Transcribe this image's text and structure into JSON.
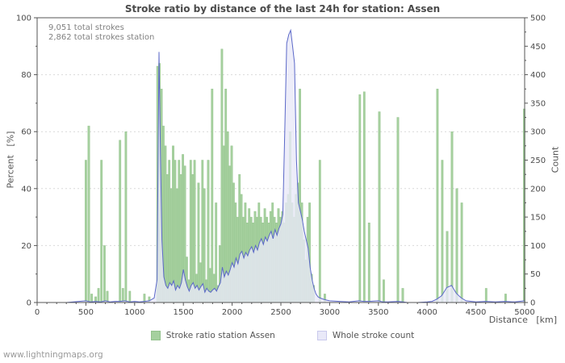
{
  "title": "Stroke ratio by distance of the last 24h for station: Assen",
  "annotations": [
    "9,051 total strokes",
    "2,862 total strokes station"
  ],
  "watermark": "www.lightningmaps.org",
  "axes": {
    "x": {
      "label": "Distance   [km]",
      "min": 0,
      "max": 5000,
      "tick": 500,
      "minor": 100
    },
    "y_left": {
      "label": "Percent   [%]",
      "min": 0,
      "max": 100,
      "tick": 20,
      "minor": 10
    },
    "y_right": {
      "label": "Count",
      "min": 0,
      "max": 500,
      "tick": 50,
      "minor": 25
    }
  },
  "legend": [
    {
      "label": "Stroke ratio station Assen",
      "type": "bar"
    },
    {
      "label": "Whole stroke count",
      "type": "area"
    }
  ],
  "colors": {
    "bar": "#a5d09e",
    "bar_border": "#93c28c",
    "area_fill": "#e9e9f8",
    "area_border": "#c9c9ec",
    "line": "#5b68c8",
    "grid": "#d9d9d9",
    "frame": "#555555",
    "tick": "#555555",
    "text": "#4a4a4a"
  },
  "chart_data": {
    "type": "bar",
    "title": "Stroke ratio by distance of the last 24h for station: Assen",
    "xlabel": "Distance [km]",
    "ylabel_left": "Percent [%]",
    "ylabel_right": "Count",
    "xlim": [
      0,
      5000
    ],
    "ylim_left": [
      0,
      100
    ],
    "ylim_right": [
      0,
      500
    ],
    "grid": true,
    "legend_position": "bottom",
    "series": [
      {
        "name": "Stroke ratio station Assen",
        "type": "bar",
        "axis": "left",
        "units": "percent",
        "points": [
          [
            500,
            50
          ],
          [
            530,
            62
          ],
          [
            560,
            3
          ],
          [
            600,
            2
          ],
          [
            630,
            5
          ],
          [
            660,
            50
          ],
          [
            690,
            20
          ],
          [
            720,
            4
          ],
          [
            850,
            57
          ],
          [
            880,
            5
          ],
          [
            910,
            60
          ],
          [
            950,
            4
          ],
          [
            1100,
            3
          ],
          [
            1150,
            2
          ],
          [
            1235,
            83
          ],
          [
            1255,
            84
          ],
          [
            1275,
            75
          ],
          [
            1295,
            62
          ],
          [
            1315,
            55
          ],
          [
            1335,
            45
          ],
          [
            1355,
            50
          ],
          [
            1375,
            40
          ],
          [
            1395,
            55
          ],
          [
            1415,
            50
          ],
          [
            1435,
            40
          ],
          [
            1455,
            50
          ],
          [
            1475,
            45
          ],
          [
            1495,
            52
          ],
          [
            1515,
            48
          ],
          [
            1535,
            16
          ],
          [
            1555,
            8
          ],
          [
            1575,
            50
          ],
          [
            1595,
            45
          ],
          [
            1615,
            50
          ],
          [
            1635,
            10
          ],
          [
            1655,
            42
          ],
          [
            1675,
            14
          ],
          [
            1695,
            50
          ],
          [
            1715,
            40
          ],
          [
            1735,
            8
          ],
          [
            1755,
            50
          ],
          [
            1775,
            12
          ],
          [
            1795,
            75
          ],
          [
            1815,
            10
          ],
          [
            1835,
            35
          ],
          [
            1855,
            6
          ],
          [
            1875,
            20
          ],
          [
            1895,
            89
          ],
          [
            1915,
            55
          ],
          [
            1935,
            75
          ],
          [
            1955,
            60
          ],
          [
            1975,
            48
          ],
          [
            1995,
            55
          ],
          [
            2015,
            42
          ],
          [
            2035,
            35
          ],
          [
            2055,
            30
          ],
          [
            2075,
            45
          ],
          [
            2095,
            38
          ],
          [
            2115,
            30
          ],
          [
            2135,
            35
          ],
          [
            2155,
            28
          ],
          [
            2175,
            33
          ],
          [
            2195,
            30
          ],
          [
            2215,
            28
          ],
          [
            2235,
            32
          ],
          [
            2255,
            30
          ],
          [
            2275,
            35
          ],
          [
            2295,
            30
          ],
          [
            2315,
            28
          ],
          [
            2335,
            33
          ],
          [
            2355,
            30
          ],
          [
            2375,
            28
          ],
          [
            2395,
            32
          ],
          [
            2415,
            35
          ],
          [
            2435,
            30
          ],
          [
            2455,
            28
          ],
          [
            2475,
            33
          ],
          [
            2495,
            30
          ],
          [
            2515,
            32
          ],
          [
            2535,
            28
          ],
          [
            2555,
            35
          ],
          [
            2575,
            38
          ],
          [
            2595,
            60
          ],
          [
            2615,
            35
          ],
          [
            2635,
            30
          ],
          [
            2655,
            38
          ],
          [
            2675,
            42
          ],
          [
            2695,
            75
          ],
          [
            2715,
            35
          ],
          [
            2735,
            22
          ],
          [
            2755,
            15
          ],
          [
            2775,
            30
          ],
          [
            2795,
            35
          ],
          [
            2815,
            10
          ],
          [
            2835,
            6
          ],
          [
            2900,
            50
          ],
          [
            2950,
            3
          ],
          [
            3310,
            73
          ],
          [
            3355,
            74
          ],
          [
            3405,
            28
          ],
          [
            3510,
            67
          ],
          [
            3555,
            8
          ],
          [
            3700,
            65
          ],
          [
            3750,
            5
          ],
          [
            4105,
            75
          ],
          [
            4155,
            50
          ],
          [
            4205,
            25
          ],
          [
            4255,
            60
          ],
          [
            4305,
            40
          ],
          [
            4355,
            35
          ],
          [
            4605,
            5
          ],
          [
            4805,
            3
          ],
          [
            4995,
            68
          ]
        ]
      },
      {
        "name": "Whole stroke count",
        "type": "area",
        "axis": "right",
        "units": "count",
        "points": [
          [
            0,
            0
          ],
          [
            300,
            0
          ],
          [
            500,
            3
          ],
          [
            550,
            1
          ],
          [
            600,
            2
          ],
          [
            650,
            1
          ],
          [
            700,
            3
          ],
          [
            750,
            1
          ],
          [
            800,
            2
          ],
          [
            850,
            2
          ],
          [
            900,
            3
          ],
          [
            950,
            1
          ],
          [
            1000,
            2
          ],
          [
            1050,
            1
          ],
          [
            1100,
            2
          ],
          [
            1150,
            3
          ],
          [
            1200,
            8
          ],
          [
            1230,
            40
          ],
          [
            1250,
            440
          ],
          [
            1265,
            260
          ],
          [
            1280,
            110
          ],
          [
            1300,
            45
          ],
          [
            1320,
            30
          ],
          [
            1340,
            25
          ],
          [
            1360,
            35
          ],
          [
            1380,
            30
          ],
          [
            1400,
            38
          ],
          [
            1420,
            22
          ],
          [
            1440,
            30
          ],
          [
            1460,
            25
          ],
          [
            1480,
            35
          ],
          [
            1500,
            58
          ],
          [
            1520,
            40
          ],
          [
            1540,
            28
          ],
          [
            1560,
            20
          ],
          [
            1580,
            30
          ],
          [
            1600,
            35
          ],
          [
            1620,
            25
          ],
          [
            1640,
            30
          ],
          [
            1660,
            22
          ],
          [
            1680,
            28
          ],
          [
            1700,
            33
          ],
          [
            1720,
            18
          ],
          [
            1740,
            25
          ],
          [
            1760,
            20
          ],
          [
            1780,
            18
          ],
          [
            1800,
            22
          ],
          [
            1820,
            25
          ],
          [
            1840,
            20
          ],
          [
            1860,
            28
          ],
          [
            1880,
            35
          ],
          [
            1900,
            62
          ],
          [
            1920,
            45
          ],
          [
            1940,
            55
          ],
          [
            1960,
            48
          ],
          [
            1980,
            58
          ],
          [
            2000,
            70
          ],
          [
            2020,
            62
          ],
          [
            2040,
            78
          ],
          [
            2060,
            68
          ],
          [
            2080,
            85
          ],
          [
            2100,
            90
          ],
          [
            2120,
            78
          ],
          [
            2140,
            88
          ],
          [
            2160,
            82
          ],
          [
            2180,
            92
          ],
          [
            2200,
            98
          ],
          [
            2220,
            88
          ],
          [
            2240,
            100
          ],
          [
            2260,
            92
          ],
          [
            2280,
            105
          ],
          [
            2300,
            112
          ],
          [
            2320,
            102
          ],
          [
            2340,
            115
          ],
          [
            2360,
            108
          ],
          [
            2380,
            118
          ],
          [
            2400,
            125
          ],
          [
            2420,
            112
          ],
          [
            2440,
            128
          ],
          [
            2460,
            118
          ],
          [
            2480,
            130
          ],
          [
            2500,
            138
          ],
          [
            2520,
            155
          ],
          [
            2540,
            300
          ],
          [
            2560,
            455
          ],
          [
            2580,
            470
          ],
          [
            2600,
            478
          ],
          [
            2620,
            450
          ],
          [
            2640,
            420
          ],
          [
            2660,
            250
          ],
          [
            2680,
            175
          ],
          [
            2700,
            160
          ],
          [
            2720,
            145
          ],
          [
            2740,
            125
          ],
          [
            2760,
            110
          ],
          [
            2780,
            95
          ],
          [
            2800,
            62
          ],
          [
            2820,
            40
          ],
          [
            2840,
            25
          ],
          [
            2860,
            15
          ],
          [
            2880,
            10
          ],
          [
            2900,
            8
          ],
          [
            2950,
            5
          ],
          [
            3000,
            3
          ],
          [
            3100,
            2
          ],
          [
            3200,
            1
          ],
          [
            3300,
            3
          ],
          [
            3350,
            2
          ],
          [
            3400,
            2
          ],
          [
            3500,
            3
          ],
          [
            3550,
            1
          ],
          [
            3600,
            1
          ],
          [
            3700,
            2
          ],
          [
            3750,
            1
          ],
          [
            3800,
            0
          ],
          [
            3900,
            0
          ],
          [
            4000,
            1
          ],
          [
            4050,
            2
          ],
          [
            4100,
            6
          ],
          [
            4150,
            12
          ],
          [
            4200,
            26
          ],
          [
            4250,
            30
          ],
          [
            4300,
            16
          ],
          [
            4350,
            8
          ],
          [
            4400,
            3
          ],
          [
            4500,
            1
          ],
          [
            4600,
            2
          ],
          [
            4700,
            1
          ],
          [
            4800,
            2
          ],
          [
            4900,
            1
          ],
          [
            5000,
            3
          ]
        ]
      }
    ]
  }
}
